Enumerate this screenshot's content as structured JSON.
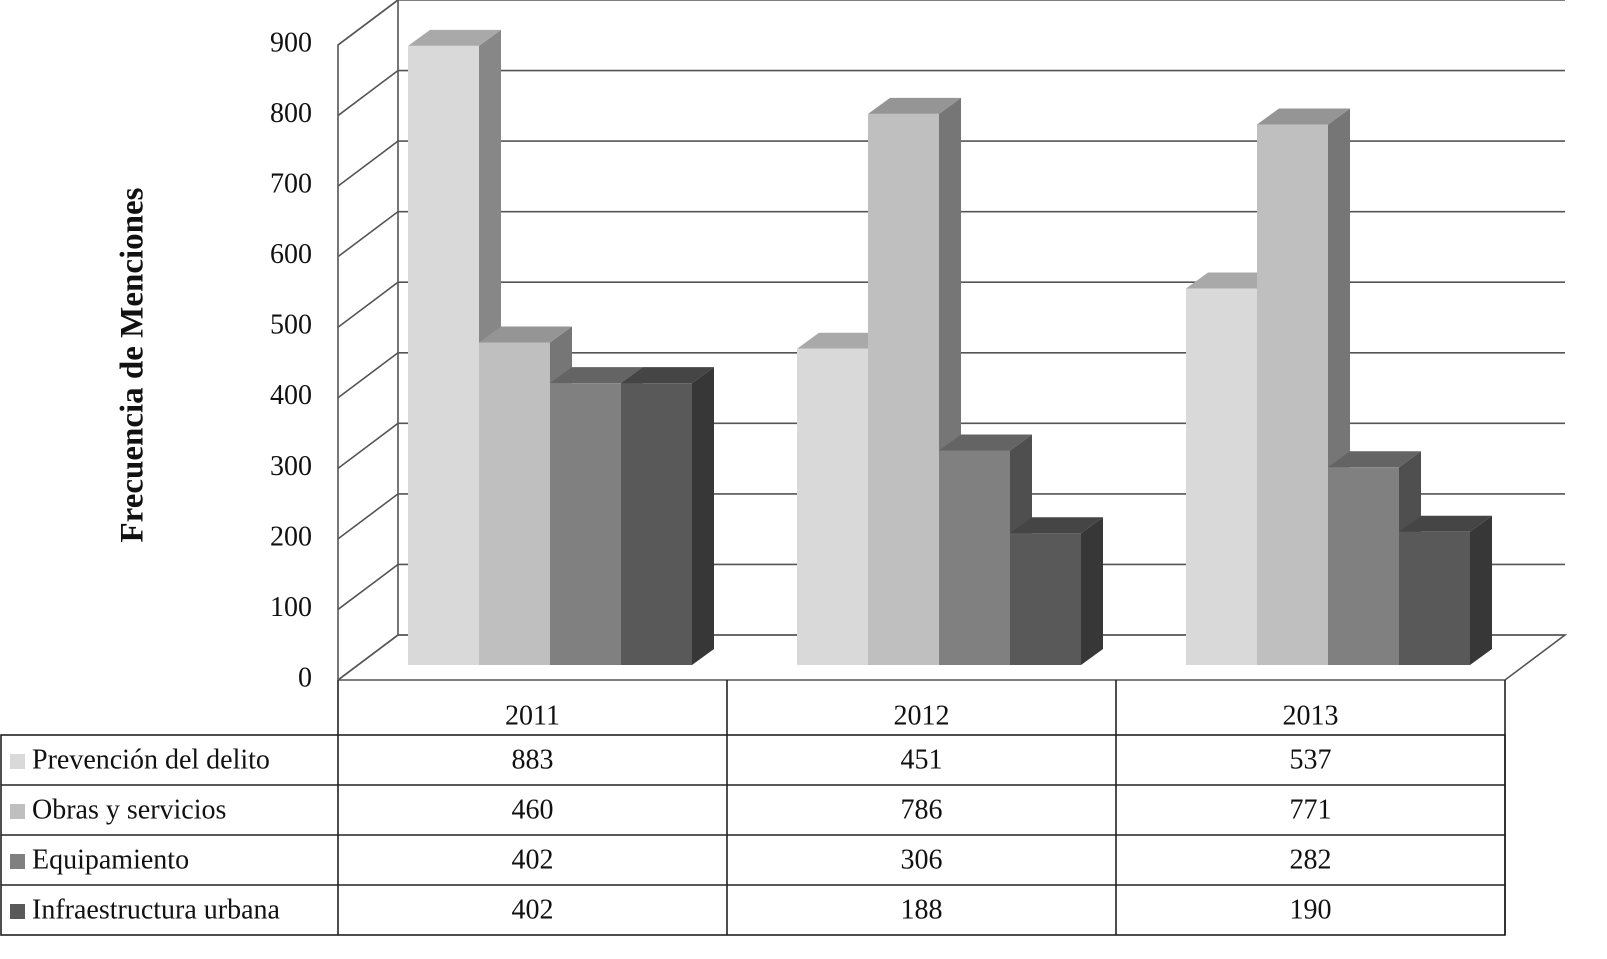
{
  "chart_data": {
    "type": "bar",
    "y_label": "Frecuencia de Menciones",
    "categories": [
      "2011",
      "2012",
      "2013"
    ],
    "series": [
      {
        "name": "Prevención del delito",
        "color": "#d9d9d9",
        "values": [
          883,
          451,
          537
        ]
      },
      {
        "name": "Obras y servicios",
        "color": "#bfbfbf",
        "values": [
          460,
          786,
          771
        ]
      },
      {
        "name": "Equipamiento",
        "color": "#808080",
        "values": [
          402,
          306,
          282
        ]
      },
      {
        "name": "Infraestructura urbana",
        "color": "#595959",
        "values": [
          402,
          188,
          190
        ]
      }
    ],
    "ylim": [
      0,
      900
    ],
    "yticks": [
      0,
      100,
      200,
      300,
      400,
      500,
      600,
      700,
      800,
      900
    ],
    "grid": true
  }
}
